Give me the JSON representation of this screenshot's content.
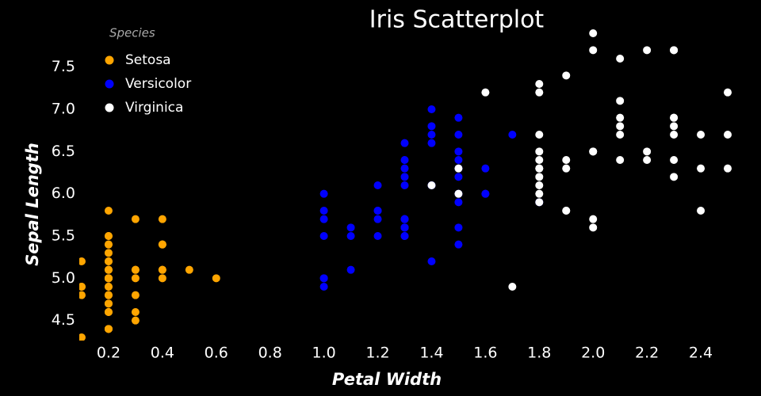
{
  "chart_data": {
    "type": "scatter",
    "title": "Iris Scatterplot",
    "x_label": "Petal Width",
    "y_label": "Sepal Length",
    "legend_title": "Species",
    "legend": "top-left",
    "xlim": [
      0.1,
      2.5
    ],
    "ylim": [
      4.3,
      7.9
    ],
    "xticks": [
      0.2,
      0.4,
      0.6,
      0.8,
      {
        "value": 1,
        "label": "1.0"
      },
      1.2,
      1.4,
      1.6,
      1.8,
      {
        "value": 2,
        "label": "2.0"
      },
      2.2,
      2.4
    ],
    "yticks": [
      4.5,
      {
        "value": 5,
        "label": "5.0"
      },
      5.5,
      {
        "value": 6,
        "label": "6.0"
      },
      6.5,
      {
        "value": 7,
        "label": "7.0"
      },
      7.5
    ],
    "series": [
      {
        "name": "Setosa",
        "color": "#ffa500",
        "x": [
          0.2,
          0.2,
          0.2,
          0.2,
          0.2,
          0.4,
          0.3,
          0.2,
          0.2,
          0.1,
          0.2,
          0.2,
          0.1,
          0.1,
          0.2,
          0.4,
          0.4,
          0.3,
          0.3,
          0.3,
          0.2,
          0.4,
          0.2,
          0.5,
          0.2,
          0.2,
          0.4,
          0.2,
          0.2,
          0.2,
          0.2,
          0.4,
          0.1,
          0.2,
          0.2,
          0.2,
          0.2,
          0.1,
          0.2,
          0.2,
          0.3,
          0.3,
          0.2,
          0.6,
          0.4,
          0.3,
          0.2,
          0.2,
          0.2,
          0.2
        ],
        "values": [
          5.1,
          4.9,
          4.7,
          4.6,
          5.0,
          5.4,
          4.6,
          5.0,
          4.4,
          4.9,
          5.4,
          4.8,
          4.8,
          4.3,
          5.8,
          5.7,
          5.4,
          5.1,
          5.7,
          5.1,
          5.4,
          5.1,
          4.6,
          5.1,
          4.8,
          5.0,
          5.0,
          5.2,
          5.2,
          4.7,
          4.8,
          5.4,
          5.2,
          5.5,
          4.9,
          5.0,
          5.5,
          4.9,
          4.4,
          5.1,
          5.0,
          4.5,
          4.4,
          5.0,
          5.1,
          4.8,
          5.1,
          4.6,
          5.3,
          5.0
        ]
      },
      {
        "name": "Versicolor",
        "color": "#0000ff",
        "x": [
          1.4,
          1.5,
          1.5,
          1.3,
          1.5,
          1.3,
          1.6,
          1.0,
          1.3,
          1.4,
          1.0,
          1.5,
          1.0,
          1.4,
          1.3,
          1.4,
          1.5,
          1.0,
          1.5,
          1.1,
          1.8,
          1.3,
          1.5,
          1.2,
          1.3,
          1.4,
          1.4,
          1.7,
          1.5,
          1.0,
          1.1,
          1.0,
          1.2,
          1.6,
          1.5,
          1.6,
          1.5,
          1.3,
          1.3,
          1.3,
          1.2,
          1.4,
          1.2,
          1.0,
          1.3,
          1.2,
          1.3,
          1.3,
          1.1,
          1.3
        ],
        "values": [
          7.0,
          6.4,
          6.9,
          5.5,
          6.5,
          5.7,
          6.3,
          4.9,
          6.6,
          5.2,
          5.0,
          5.9,
          6.0,
          6.1,
          5.6,
          6.7,
          5.6,
          5.8,
          6.2,
          5.6,
          5.9,
          6.1,
          6.3,
          6.1,
          6.4,
          6.6,
          6.8,
          6.7,
          6.0,
          5.7,
          5.5,
          5.5,
          5.8,
          6.0,
          5.4,
          6.0,
          6.7,
          6.3,
          5.6,
          5.5,
          5.5,
          6.1,
          5.8,
          5.0,
          5.6,
          5.7,
          5.7,
          6.2,
          5.1,
          5.7
        ]
      },
      {
        "name": "Virginica",
        "color": "#ffffff",
        "x": [
          2.5,
          1.9,
          2.1,
          1.8,
          2.2,
          2.1,
          1.7,
          1.8,
          1.8,
          2.5,
          2.0,
          1.9,
          2.1,
          2.0,
          2.4,
          2.3,
          1.8,
          2.2,
          2.3,
          1.5,
          2.3,
          2.0,
          2.0,
          1.8,
          2.1,
          1.8,
          1.8,
          1.8,
          2.1,
          1.6,
          1.9,
          2.0,
          2.2,
          1.5,
          1.4,
          2.3,
          2.4,
          1.8,
          1.8,
          2.1,
          2.4,
          2.3,
          1.9,
          2.3,
          2.5,
          2.3,
          1.9,
          2.0,
          2.3,
          1.8
        ],
        "values": [
          6.3,
          5.8,
          7.1,
          6.3,
          6.5,
          7.6,
          4.9,
          7.3,
          6.7,
          7.2,
          6.5,
          6.4,
          6.8,
          5.7,
          5.8,
          6.4,
          6.5,
          7.7,
          7.7,
          6.0,
          6.9,
          5.6,
          7.7,
          6.3,
          6.7,
          7.2,
          6.2,
          6.1,
          6.4,
          7.2,
          7.4,
          7.9,
          6.4,
          6.3,
          6.1,
          7.7,
          6.3,
          6.4,
          6.0,
          6.9,
          6.7,
          6.9,
          5.8,
          6.8,
          6.7,
          6.7,
          6.3,
          6.5,
          6.2,
          5.9
        ]
      }
    ]
  }
}
